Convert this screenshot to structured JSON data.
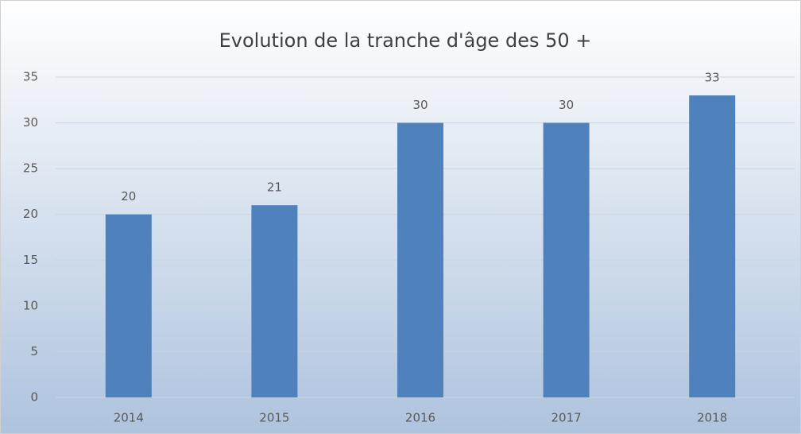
{
  "chart_data": {
    "type": "bar",
    "title": "Evolution de la tranche d'âge des 50 +",
    "categories": [
      "2014",
      "2015",
      "2016",
      "2017",
      "2018"
    ],
    "values": [
      20,
      21,
      30,
      30,
      33
    ],
    "color": "#4f81bd",
    "ylim": [
      0,
      35
    ],
    "yticks": [
      0,
      5,
      10,
      15,
      20,
      25,
      30,
      35
    ],
    "grid": true
  }
}
